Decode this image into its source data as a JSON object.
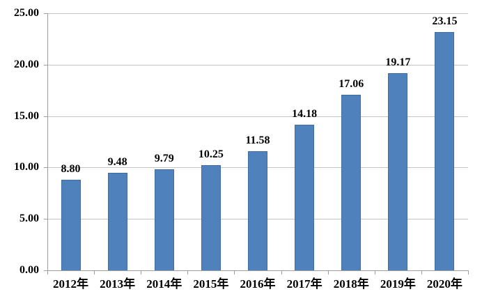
{
  "chart_data": {
    "type": "bar",
    "title": "",
    "xlabel": "",
    "ylabel": "",
    "categories": [
      "2012年",
      "2013年",
      "2014年",
      "2015年",
      "2016年",
      "2017年",
      "2018年",
      "2019年",
      "2020年"
    ],
    "values": [
      8.8,
      9.48,
      9.79,
      10.25,
      11.58,
      14.18,
      17.06,
      19.17,
      23.15
    ],
    "value_labels": [
      "8.80",
      "9.48",
      "9.79",
      "10.25",
      "11.58",
      "14.18",
      "17.06",
      "19.17",
      "23.15"
    ],
    "ylim": [
      0,
      25
    ],
    "ytick_labels": [
      "0.00",
      "5.00",
      "10.00",
      "15.00",
      "20.00",
      "25.00"
    ],
    "ytick_values": [
      0,
      5,
      10,
      15,
      20,
      25
    ],
    "grid": true,
    "legend": "none",
    "colors": {
      "bar_fill": "#4f81bd",
      "bar_border": "#3f6da3",
      "gridline": "#c3c3c3",
      "axis": "#9c9c9c",
      "text": "#000000",
      "background": "#ffffff"
    }
  }
}
